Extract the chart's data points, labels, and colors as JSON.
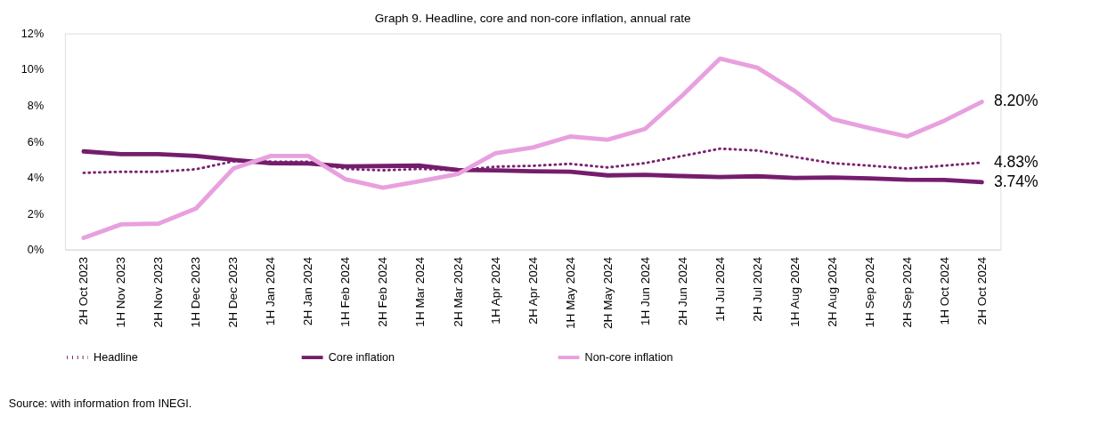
{
  "chart_data": {
    "type": "line",
    "title": "Graph 9. Headline, core and non-core inflation, annual rate",
    "categories": [
      "2H Oct 2023",
      "1H Nov 2023",
      "2H Nov 2023",
      "1H Dec 2023",
      "2H Dec 2023",
      "1H Jan 2024",
      "2H Jan 2024",
      "1H Feb 2024",
      "2H Feb 2024",
      "1H Mar 2024",
      "2H Mar 2024",
      "1H Apr 2024",
      "2H Apr 2024",
      "1H May 2024",
      "2H May 2024",
      "1H Jun 2024",
      "2H Jun 2024",
      "1H Jul 2024",
      "2H Jul 2024",
      "1H Aug 2024",
      "2H Aug 2024",
      "1H Sep 2024",
      "2H Sep 2024",
      "1H Oct 2024",
      "2H Oct 2024"
    ],
    "series": [
      {
        "name": "Headline",
        "color": "#7b2372",
        "line_style": "dotted",
        "values": [
          4.26,
          4.32,
          4.32,
          4.46,
          4.9,
          4.88,
          4.88,
          4.48,
          4.4,
          4.48,
          4.4,
          4.6,
          4.65,
          4.76,
          4.56,
          4.8,
          5.2,
          5.6,
          5.5,
          5.14,
          4.8,
          4.66,
          4.5,
          4.66,
          4.83
        ]
      },
      {
        "name": "Core inflation",
        "color": "#751d6d",
        "line_style": "solid",
        "values": [
          5.45,
          5.3,
          5.3,
          5.2,
          4.98,
          4.8,
          4.78,
          4.62,
          4.64,
          4.66,
          4.42,
          4.4,
          4.35,
          4.32,
          4.12,
          4.15,
          4.08,
          4.03,
          4.07,
          3.98,
          4.0,
          3.95,
          3.88,
          3.87,
          3.74
        ]
      },
      {
        "name": "Non-core inflation",
        "color": "#e8a0df",
        "line_style": "solid",
        "values": [
          0.65,
          1.4,
          1.44,
          2.28,
          4.5,
          5.2,
          5.2,
          3.9,
          3.44,
          3.8,
          4.2,
          5.35,
          5.67,
          6.28,
          6.1,
          6.7,
          8.56,
          10.6,
          10.1,
          8.8,
          7.25,
          6.74,
          6.28,
          7.16,
          8.2
        ]
      }
    ],
    "ylim": [
      0,
      12
    ],
    "yticks": [
      {
        "value": 0,
        "label": "0%"
      },
      {
        "value": 2,
        "label": "2%"
      },
      {
        "value": 4,
        "label": "4%"
      },
      {
        "value": 6,
        "label": "6%"
      },
      {
        "value": 8,
        "label": "8%"
      },
      {
        "value": 10,
        "label": "10%"
      },
      {
        "value": 12,
        "label": "12%"
      }
    ],
    "grid": false,
    "legend": "bottom",
    "marker": "none",
    "annotations": [
      {
        "text": "8.20%",
        "x": "2H Oct 2024",
        "y": 8.2
      },
      {
        "text": "4.83%",
        "x": "2H Oct 2024",
        "y": 4.83
      },
      {
        "text": "3.74%",
        "x": "2H Oct 2024",
        "y": 3.74
      },
      "Source: with information from INEGI."
    ]
  }
}
